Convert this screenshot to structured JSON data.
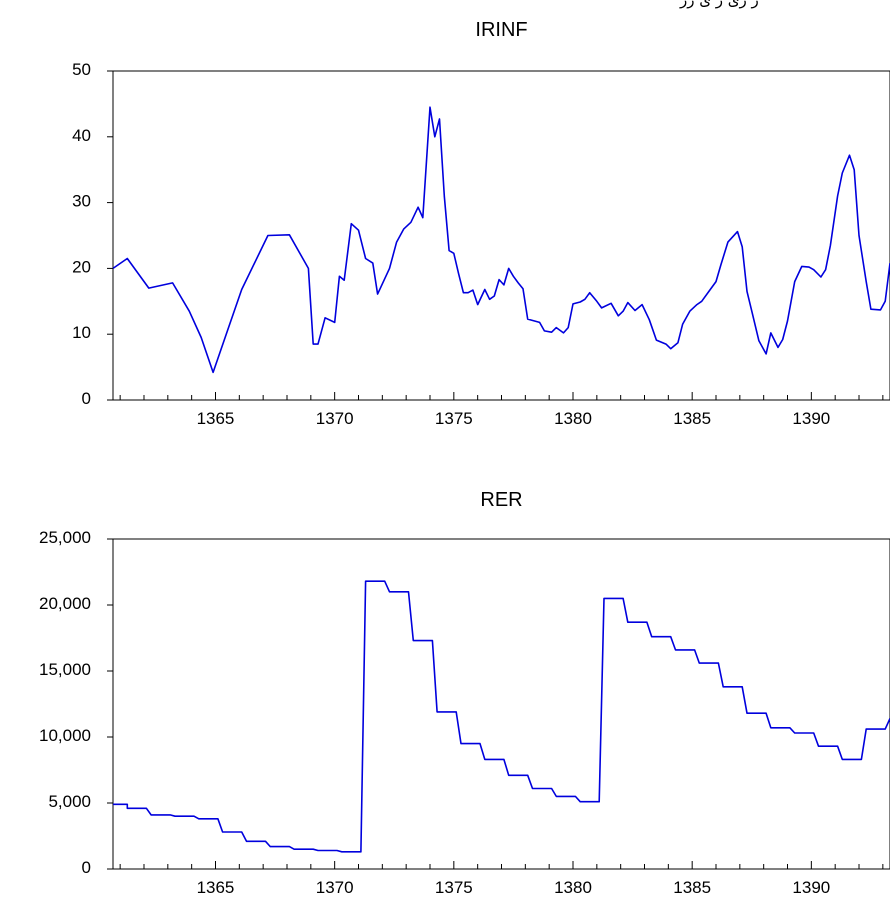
{
  "header": {
    "cropped_text": "ر ری ر ی رر"
  },
  "chart_data": [
    {
      "type": "line",
      "title": "IRINF",
      "xlabel": "",
      "ylabel": "",
      "xlim": [
        1360.7,
        1393.3
      ],
      "ylim": [
        0,
        50
      ],
      "yticks": [
        0,
        10,
        20,
        30,
        40,
        50
      ],
      "ytick_labels": [
        "0",
        "10",
        "20",
        "30",
        "40",
        "50"
      ],
      "xticks": [
        1365,
        1370,
        1375,
        1380,
        1385,
        1390
      ],
      "xtick_labels": [
        "1365",
        "1370",
        "1375",
        "1380",
        "1385",
        "1390"
      ],
      "color": "#0000dd",
      "series": [
        {
          "x": [
            1360.7,
            1361.3,
            1362.2,
            1363.2,
            1363.9,
            1364.4,
            1364.9,
            1365.5,
            1366.1,
            1367.2,
            1368.1,
            1368.9,
            1369.1,
            1369.3,
            1369.6,
            1370.0,
            1370.2,
            1370.4,
            1370.7,
            1371.0,
            1371.3,
            1371.6,
            1371.8,
            1372.3,
            1372.6,
            1372.9,
            1373.2,
            1373.5,
            1373.7,
            1374.0,
            1374.2,
            1374.4,
            1374.6,
            1374.8,
            1375.0,
            1375.2,
            1375.4,
            1375.6,
            1375.8,
            1376.0,
            1376.3,
            1376.5,
            1376.7,
            1376.9,
            1377.1,
            1377.3,
            1377.5,
            1377.7,
            1377.9,
            1378.1,
            1378.6,
            1378.8,
            1379.1,
            1379.3,
            1379.6,
            1379.8,
            1380.0,
            1380.3,
            1380.5,
            1380.7,
            1381.0,
            1381.2,
            1381.6,
            1381.9,
            1382.1,
            1382.3,
            1382.6,
            1382.9,
            1383.2,
            1383.5,
            1383.9,
            1384.1,
            1384.4,
            1384.6,
            1384.9,
            1385.2,
            1385.4,
            1385.7,
            1386.0,
            1386.2,
            1386.5,
            1386.9,
            1387.1,
            1387.3,
            1387.5,
            1387.8,
            1388.1,
            1388.3,
            1388.6,
            1388.8,
            1389.0,
            1389.3,
            1389.6,
            1389.9,
            1390.1,
            1390.4,
            1390.6,
            1390.8,
            1391.1,
            1391.3,
            1391.6,
            1391.8,
            1392.0,
            1392.3,
            1392.5,
            1392.9,
            1393.1,
            1393.3
          ],
          "y": [
            20.0,
            21.5,
            17.0,
            17.8,
            13.5,
            9.5,
            4.2,
            10.5,
            16.8,
            25.0,
            25.1,
            20.0,
            8.5,
            8.5,
            12.5,
            11.8,
            18.8,
            18.2,
            26.8,
            25.8,
            21.5,
            20.8,
            16.1,
            20.0,
            24.0,
            26.0,
            27.0,
            29.3,
            27.7,
            44.5,
            40.0,
            42.7,
            31.0,
            22.7,
            22.3,
            19.2,
            16.3,
            16.3,
            16.7,
            14.5,
            16.8,
            15.3,
            15.8,
            18.3,
            17.5,
            20.0,
            18.8,
            17.8,
            16.9,
            12.3,
            11.8,
            10.5,
            10.3,
            11.0,
            10.2,
            11.0,
            14.6,
            14.9,
            15.3,
            16.3,
            15.0,
            14.0,
            14.7,
            12.8,
            13.5,
            14.8,
            13.6,
            14.5,
            12.2,
            9.1,
            8.5,
            7.8,
            8.7,
            11.5,
            13.5,
            14.5,
            15.0,
            16.5,
            18.0,
            20.5,
            24.0,
            25.6,
            23.3,
            16.5,
            13.5,
            9.0,
            7.0,
            10.2,
            8.0,
            9.2,
            12.0,
            18.0,
            20.3,
            20.2,
            19.8,
            18.7,
            19.8,
            23.5,
            31.0,
            34.5,
            37.2,
            35.0,
            25.0,
            18.0,
            13.8,
            13.7,
            15.0,
            20.8
          ]
        }
      ]
    },
    {
      "type": "line",
      "title": "RER",
      "xlabel": "",
      "ylabel": "",
      "xlim": [
        1360.7,
        1393.3
      ],
      "ylim": [
        0,
        25000
      ],
      "yticks": [
        0,
        5000,
        10000,
        15000,
        20000,
        25000
      ],
      "ytick_labels": [
        "0",
        "5,000",
        "10,000",
        "15,000",
        "20,000",
        "25,000"
      ],
      "xticks": [
        1365,
        1370,
        1375,
        1380,
        1385,
        1390
      ],
      "xtick_labels": [
        "1365",
        "1370",
        "1375",
        "1380",
        "1385",
        "1390"
      ],
      "color": "#0000dd",
      "series": [
        {
          "x": [
            1360.7,
            1361.3,
            1361.3,
            1362.1,
            1362.3,
            1363.1,
            1363.3,
            1364.1,
            1364.3,
            1365.1,
            1365.3,
            1366.1,
            1366.3,
            1367.1,
            1367.3,
            1368.1,
            1368.3,
            1369.1,
            1369.3,
            1370.1,
            1370.3,
            1371.1,
            1371.3,
            1372.1,
            1372.3,
            1373.1,
            1373.3,
            1374.1,
            1374.3,
            1375.1,
            1375.3,
            1376.1,
            1376.3,
            1377.1,
            1377.3,
            1378.1,
            1378.3,
            1379.1,
            1379.3,
            1380.1,
            1380.3,
            1381.1,
            1381.3,
            1382.1,
            1382.3,
            1383.1,
            1383.3,
            1384.1,
            1384.3,
            1385.1,
            1385.3,
            1386.1,
            1386.3,
            1387.1,
            1387.3,
            1388.1,
            1388.3,
            1389.1,
            1389.3,
            1390.1,
            1390.3,
            1391.1,
            1391.3,
            1392.1,
            1392.3,
            1393.1,
            1393.3
          ],
          "y": [
            4900,
            4900,
            4600,
            4600,
            4100,
            4100,
            4000,
            4000,
            3800,
            3800,
            2800,
            2800,
            2100,
            2100,
            1700,
            1700,
            1500,
            1500,
            1400,
            1400,
            1300,
            1300,
            21800,
            21800,
            21000,
            21000,
            17300,
            17300,
            11900,
            11900,
            9500,
            9500,
            8300,
            8300,
            7100,
            7100,
            6100,
            6100,
            5500,
            5500,
            5100,
            5100,
            20500,
            20500,
            18700,
            18700,
            17600,
            17600,
            16600,
            16600,
            15600,
            15600,
            13800,
            13800,
            11800,
            11800,
            10700,
            10700,
            10300,
            10300,
            9300,
            9300,
            8300,
            8300,
            10600,
            10600,
            11400
          ]
        }
      ]
    }
  ]
}
